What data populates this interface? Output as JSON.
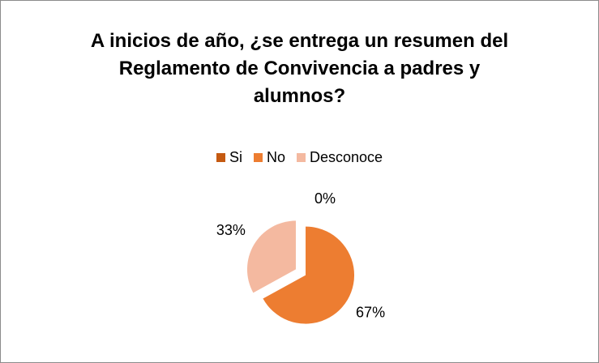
{
  "chart_data": {
    "type": "pie",
    "title": "A inicios de año, ¿se entrega un resumen del Reglamento de Convivencia a padres y alumnos?",
    "categories": [
      "Si",
      "No",
      "Desconoce"
    ],
    "values": [
      0,
      67,
      33
    ],
    "value_labels": [
      "0%",
      "67%",
      "33%"
    ],
    "colors": [
      "#c55a11",
      "#ed7d31",
      "#f4b9a0"
    ],
    "legend": "top"
  }
}
